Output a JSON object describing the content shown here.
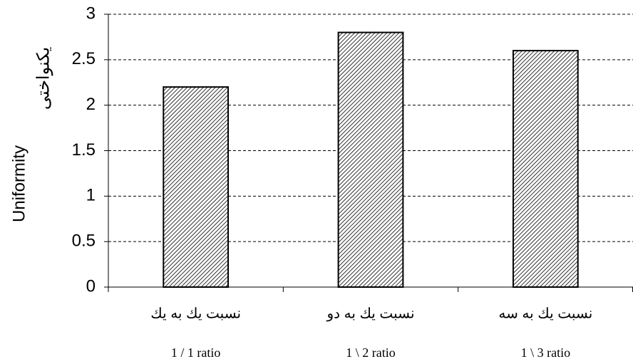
{
  "chart_data": {
    "type": "bar",
    "ylabel": [
      "Uniformity",
      "يكنواختی"
    ],
    "categories": [
      [
        "نسبت يك به يك",
        "1 / 1 ratio"
      ],
      [
        "نسبت يك به دو",
        "1 \\ 2  ratio"
      ],
      [
        "نسبت يك به سه",
        "1 \\ 3  ratio"
      ]
    ],
    "values": [
      2.2,
      2.8,
      2.6
    ],
    "ylim": [
      0,
      3
    ],
    "yticks": [
      0,
      0.5,
      1,
      1.5,
      2,
      2.5,
      3
    ],
    "grid": true
  }
}
